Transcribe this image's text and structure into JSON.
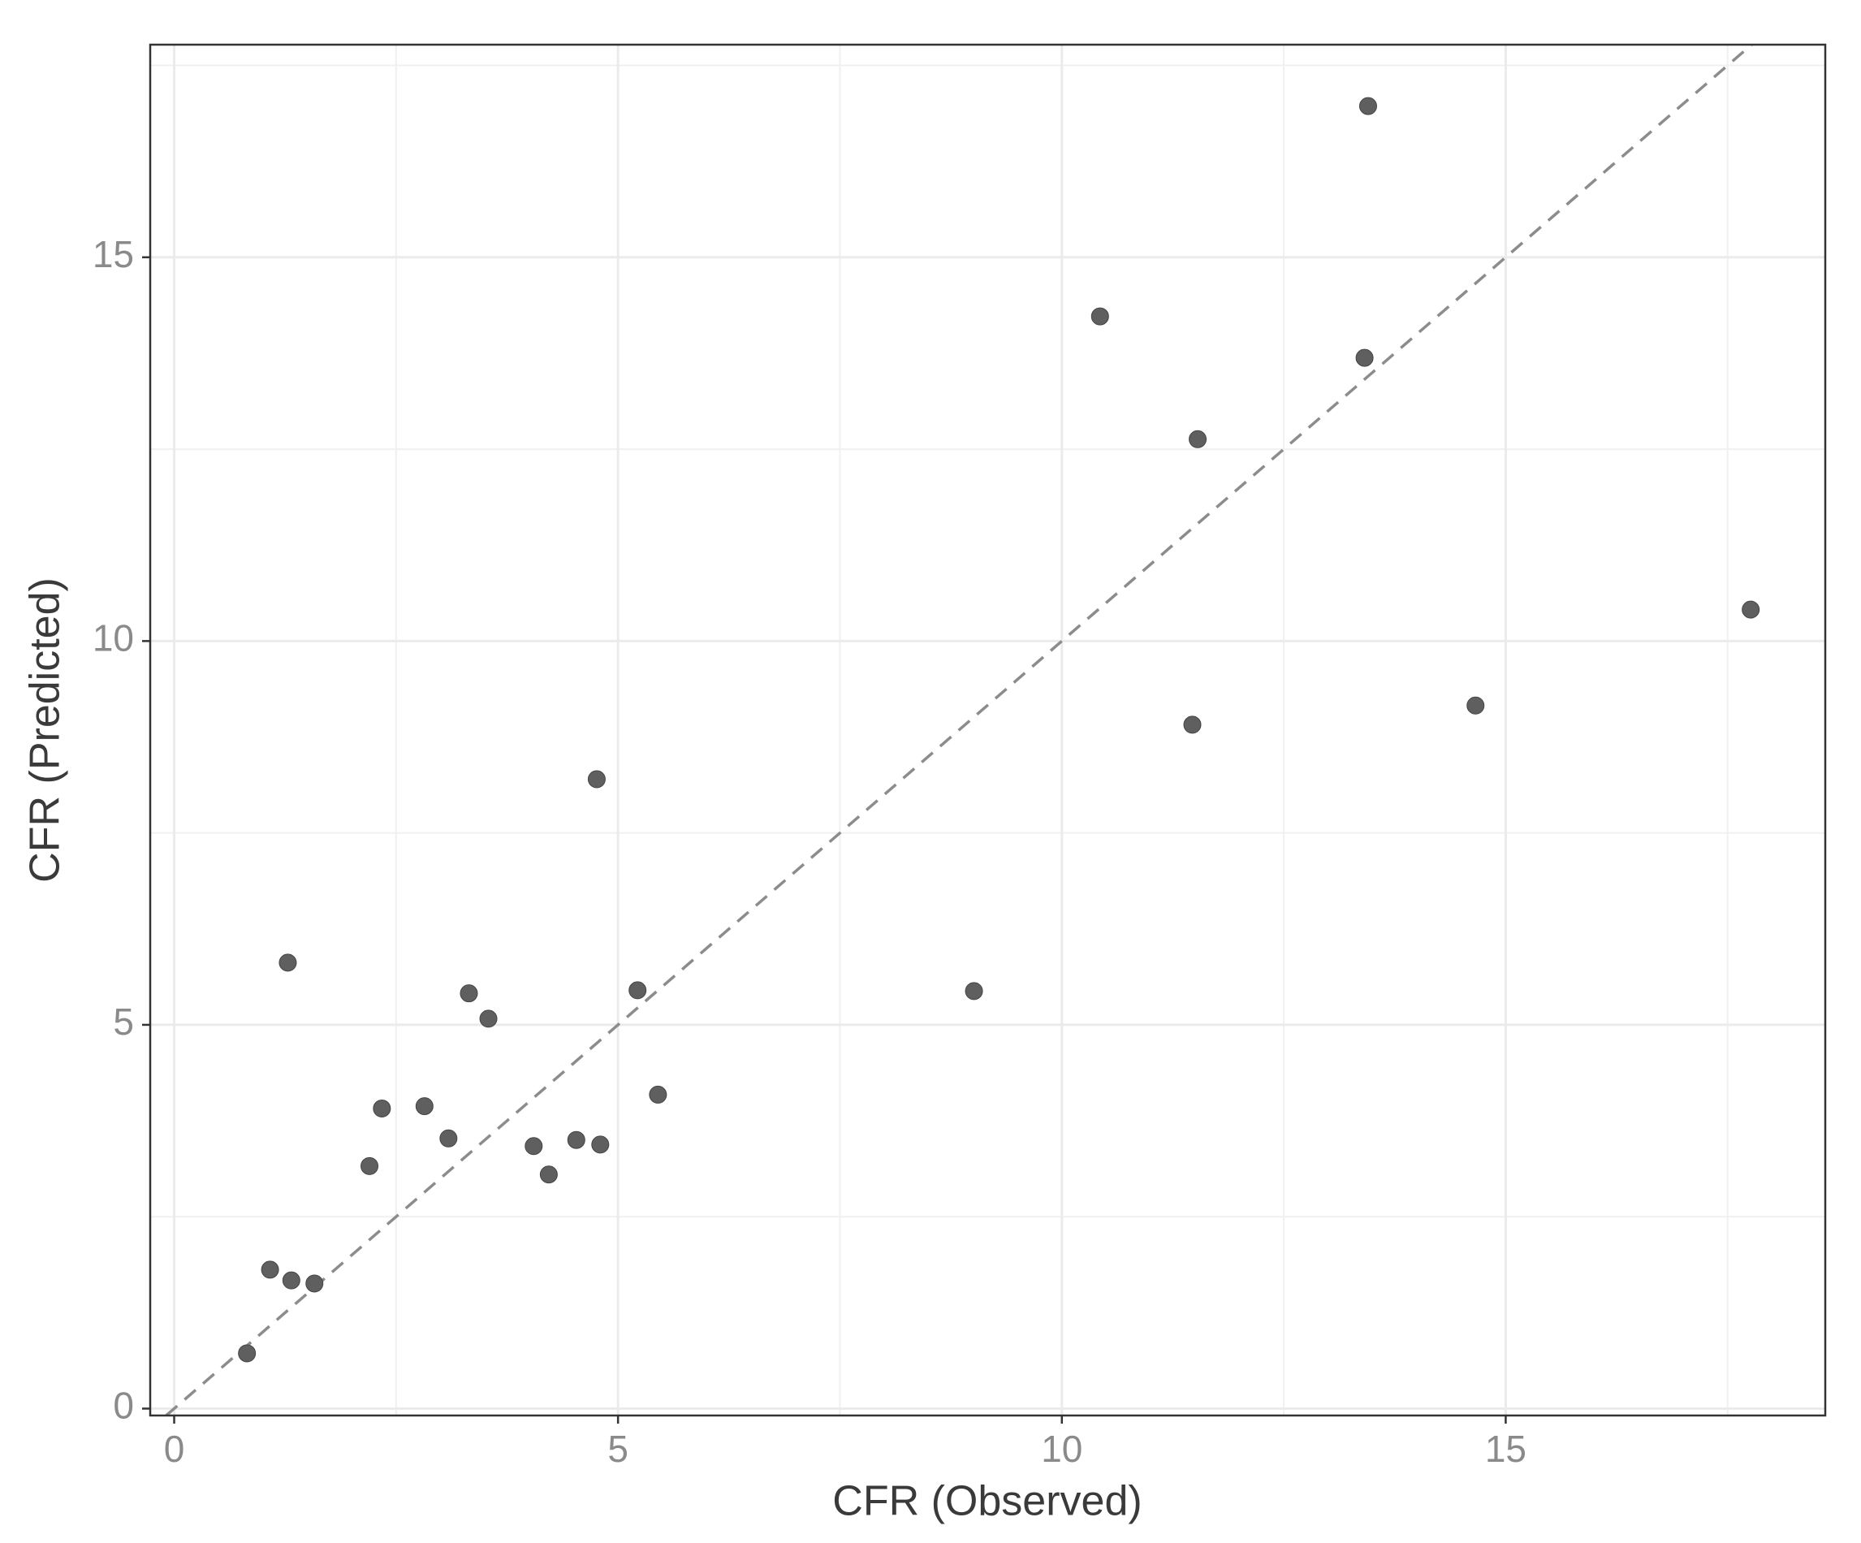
{
  "chart_data": {
    "type": "scatter",
    "x_label": "CFR (Observed)",
    "y_label": "CFR (Predicted)",
    "x": [
      13.45,
      10.43,
      13.41,
      11.53,
      17.76,
      14.66,
      11.47,
      4.76,
      1.28,
      3.32,
      3.54,
      5.22,
      9.01,
      5.45,
      2.34,
      2.82,
      3.09,
      2.2,
      4.05,
      4.53,
      4.8,
      4.22,
      1.08,
      1.32,
      1.58,
      0.82
    ],
    "values": [
      16.97,
      14.23,
      13.69,
      12.63,
      10.41,
      9.16,
      8.91,
      8.2,
      5.81,
      5.41,
      5.08,
      5.45,
      5.44,
      4.09,
      3.91,
      3.94,
      3.52,
      3.16,
      3.42,
      3.5,
      3.44,
      3.05,
      1.81,
      1.67,
      1.63,
      0.72
    ],
    "color": "#5f5f5f",
    "xlim": [
      -0.27,
      18.6
    ],
    "ylim": [
      -0.09,
      17.77
    ],
    "xticks": [
      0,
      5,
      10,
      15
    ],
    "yticks": [
      0,
      5,
      10,
      15
    ],
    "x_minor_ticks": [
      2.5,
      7.5,
      12.5,
      17.5
    ],
    "y_minor_ticks": [
      2.5,
      7.5,
      12.5,
      17.5
    ],
    "grid": true,
    "reference_line": "identity"
  }
}
